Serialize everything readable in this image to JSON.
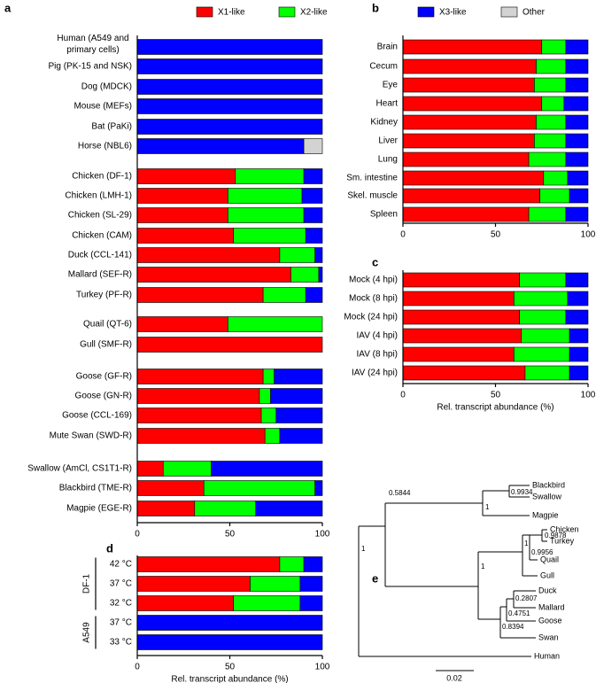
{
  "chart_data": [
    {
      "type": "bar",
      "orientation": "horizontal",
      "stacked": true,
      "panel": "a",
      "categories": [
        "Human (A549 and primary cells)",
        "Pig (PK-15 and NSK)",
        "Dog (MDCK)",
        "Mouse (MEFs)",
        "Bat (PaKi)",
        "Horse (NBL6)",
        "Chicken (DF-1)",
        "Chicken (LMH-1)",
        "Chicken (SL-29)",
        "Chicken (CAM)",
        "Duck (CCL-141)",
        "Mallard (SEF-R)",
        "Turkey (PF-R)",
        "Quail (QT-6)",
        "Gull (SMF-R)",
        "Goose (GF-R)",
        "Goose (GN-R)",
        "Goose (CCL-169)",
        "Mute Swan (SWD-R)",
        "Swallow (AmCl, CS1T1-R)",
        "Blackbird (TME-R)",
        "Magpie (EGE-R)"
      ],
      "series": [
        {
          "name": "X1-like",
          "color": "#ff0000",
          "values": [
            0,
            0,
            0,
            0,
            0,
            0,
            53,
            49,
            49,
            52,
            77,
            83,
            68,
            49,
            100,
            68,
            66,
            67,
            69,
            14,
            36,
            31
          ]
        },
        {
          "name": "X2-like",
          "color": "#00ff00",
          "values": [
            0,
            0,
            0,
            0,
            0,
            0,
            37,
            40,
            41,
            39,
            19,
            15,
            23,
            51,
            0,
            6,
            6,
            8,
            8,
            26,
            60,
            33
          ]
        },
        {
          "name": "X3-like",
          "color": "#0000ff",
          "values": [
            100,
            100,
            100,
            100,
            100,
            90,
            10,
            11,
            10,
            9,
            4,
            2,
            9,
            0,
            0,
            26,
            28,
            25,
            23,
            60,
            4,
            36
          ]
        },
        {
          "name": "Other",
          "color": "#d3d3d3",
          "values": [
            0,
            0,
            0,
            0,
            0,
            10,
            0,
            0,
            0,
            0,
            0,
            0,
            0,
            0,
            0,
            0,
            0,
            0,
            0,
            0,
            0,
            0
          ]
        }
      ],
      "xlim": [
        0,
        100
      ],
      "xticks": [
        0,
        50,
        100
      ]
    },
    {
      "type": "bar",
      "orientation": "horizontal",
      "stacked": true,
      "panel": "b",
      "categories": [
        "Brain",
        "Cecum",
        "Eye",
        "Heart",
        "Kidney",
        "Liver",
        "Lung",
        "Sm. intestine",
        "Skel. muscle",
        "Spleen"
      ],
      "series": [
        {
          "color": "#ff0000",
          "values": [
            75,
            72,
            71,
            75,
            72,
            71,
            68,
            76,
            74,
            68
          ]
        },
        {
          "color": "#00ff00",
          "values": [
            13,
            16,
            17,
            12,
            16,
            17,
            20,
            13,
            16,
            20
          ]
        },
        {
          "color": "#0000ff",
          "values": [
            12,
            12,
            12,
            13,
            12,
            12,
            12,
            11,
            10,
            12
          ]
        }
      ],
      "xlim": [
        0,
        100
      ],
      "xticks": [
        0,
        50,
        100
      ]
    },
    {
      "type": "bar",
      "orientation": "horizontal",
      "stacked": true,
      "panel": "c",
      "categories": [
        "Mock (4 hpi)",
        "Mock (8 hpi)",
        "Mock (24 hpi)",
        "IAV (4 hpi)",
        "IAV (8 hpi)",
        "IAV (24 hpi)"
      ],
      "series": [
        {
          "color": "#ff0000",
          "values": [
            63,
            60,
            63,
            64,
            60,
            66
          ]
        },
        {
          "color": "#00ff00",
          "values": [
            25,
            29,
            25,
            26,
            30,
            24
          ]
        },
        {
          "color": "#0000ff",
          "values": [
            12,
            11,
            12,
            10,
            10,
            10
          ]
        }
      ],
      "xlim": [
        0,
        100
      ],
      "xticks": [
        0,
        50,
        100
      ],
      "xlabel": "Rel. transcript abundance (%)"
    },
    {
      "type": "bar",
      "orientation": "horizontal",
      "stacked": true,
      "panel": "d",
      "categories": [
        "42 °C",
        "37 °C",
        "32 °C",
        "37 °C",
        "33 °C"
      ],
      "groups": [
        {
          "label": "DF-1",
          "count": 3
        },
        {
          "label": "A549",
          "count": 2
        }
      ],
      "series": [
        {
          "color": "#ff0000",
          "values": [
            77,
            61,
            52,
            0,
            0
          ]
        },
        {
          "color": "#00ff00",
          "values": [
            13,
            27,
            36,
            0,
            0
          ]
        },
        {
          "color": "#0000ff",
          "values": [
            10,
            12,
            12,
            100,
            100
          ]
        }
      ],
      "xlim": [
        0,
        100
      ],
      "xticks": [
        0,
        50,
        100
      ],
      "xlabel": "Rel. transcript abundance (%)"
    }
  ],
  "tree": {
    "panel": "e",
    "leaves": [
      "Blackbird",
      "Swallow",
      "Magpie",
      "Chicken",
      "Turkey",
      "Quail",
      "Gull",
      "Duck",
      "Mallard",
      "Goose",
      "Swan",
      "Human"
    ],
    "supports": [
      1,
      0.5844,
      1,
      0.9934,
      1,
      1,
      0.9878,
      0.9956,
      0.2807,
      0.4751,
      0.8394
    ],
    "scale_label": "0.02"
  }
}
